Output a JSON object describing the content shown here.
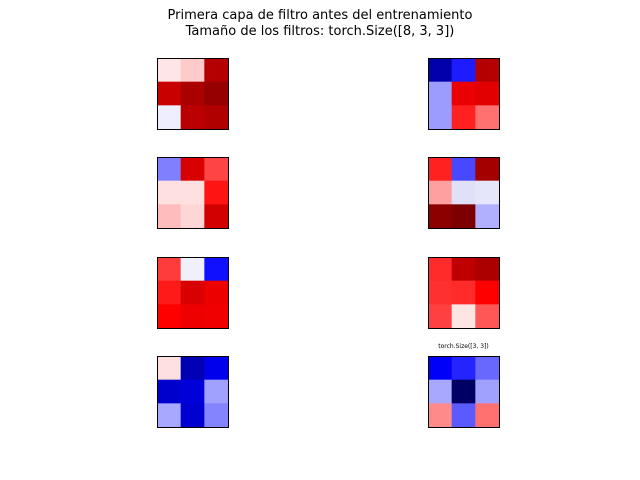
{
  "figure": {
    "title": "Primera capa de filtro antes del entrenamiento",
    "subtitle": "Tamaño de los filtros: torch.Size([8, 3, 3])"
  },
  "chart_data": {
    "type": "heatmap",
    "colormap": "seismic",
    "grid": false,
    "filter_shape": "torch.Size([8, 3, 3])",
    "filters": [
      {
        "index": 0,
        "label": "",
        "colors": [
          [
            "#ffe6e6",
            "#ffcaca",
            "#b40000"
          ],
          [
            "#c80000",
            "#aa0000",
            "#960000"
          ],
          [
            "#eeeeff",
            "#ba0000",
            "#b00000"
          ]
        ]
      },
      {
        "index": 1,
        "label": "",
        "colors": [
          [
            "#0000aa",
            "#1c1cff",
            "#b40000"
          ],
          [
            "#9c9cff",
            "#ea0000",
            "#e20000"
          ],
          [
            "#9c9cff",
            "#ff2020",
            "#ff7070"
          ]
        ]
      },
      {
        "index": 2,
        "label": "",
        "colors": [
          [
            "#8080ff",
            "#d80000",
            "#ff4444"
          ],
          [
            "#ffe0e0",
            "#ffe0e0",
            "#ff1414"
          ],
          [
            "#ffbcbc",
            "#ffd6d6",
            "#d20000"
          ]
        ]
      },
      {
        "index": 3,
        "label": "",
        "colors": [
          [
            "#ff2020",
            "#4848ff",
            "#a40000"
          ],
          [
            "#ffa0a0",
            "#e0e0f8",
            "#e6e6fa"
          ],
          [
            "#8c0000",
            "#7c0000",
            "#b0b0ff"
          ]
        ]
      },
      {
        "index": 4,
        "label": "",
        "colors": [
          [
            "#ff3c3c",
            "#f0f0fa",
            "#1010ff"
          ],
          [
            "#ff1a1a",
            "#d80000",
            "#ec0000"
          ],
          [
            "#ff0000",
            "#ee0000",
            "#f00000"
          ]
        ]
      },
      {
        "index": 5,
        "label": "",
        "colors": [
          [
            "#ff2a2a",
            "#c00000",
            "#ac0000"
          ],
          [
            "#ff3030",
            "#ff2a2a",
            "#ff0000"
          ],
          [
            "#ff4040",
            "#ffe4e4",
            "#ff5656"
          ]
        ]
      },
      {
        "index": 6,
        "label": "",
        "colors": [
          [
            "#ffe0e0",
            "#0000b4",
            "#0000ec"
          ],
          [
            "#0000cc",
            "#0000d8",
            "#a0a0ff"
          ],
          [
            "#a8a8ff",
            "#0000d0",
            "#8484ff"
          ]
        ]
      },
      {
        "index": 7,
        "label": "torch.Size([3, 3])",
        "colors": [
          [
            "#0000f8",
            "#2424ff",
            "#6868ff"
          ],
          [
            "#a8a8ff",
            "#000064",
            "#a0a0ff"
          ],
          [
            "#ff8a8a",
            "#5a5aff",
            "#ff7070"
          ]
        ]
      }
    ]
  }
}
